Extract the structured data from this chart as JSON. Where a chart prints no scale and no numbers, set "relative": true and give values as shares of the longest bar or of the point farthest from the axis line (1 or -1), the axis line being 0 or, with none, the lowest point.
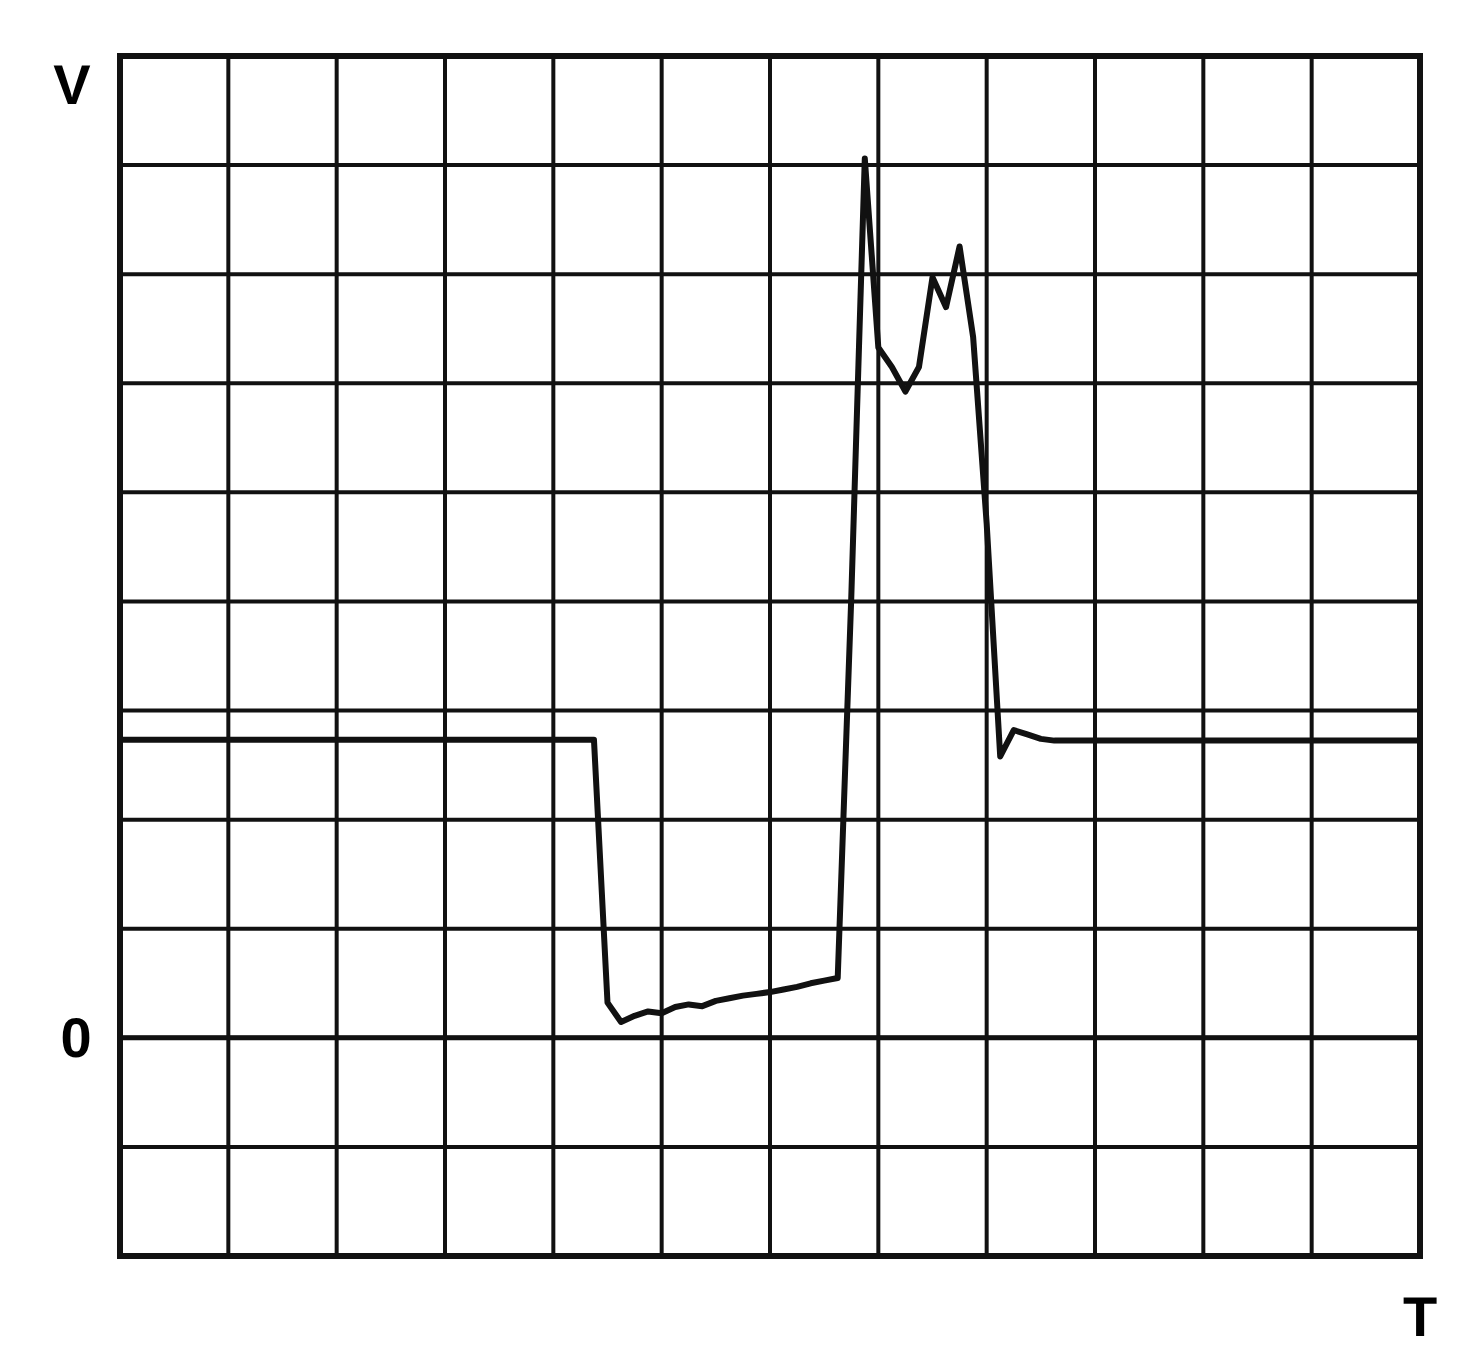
{
  "chart_data": {
    "type": "line",
    "relative": true,
    "ylabel": "V",
    "xlabel": "T",
    "grid": true,
    "ref_lines": [
      {
        "axis": "y",
        "value": 0,
        "label": "0"
      }
    ],
    "categories": [
      null,
      null,
      null,
      null,
      null,
      null,
      null,
      null,
      null,
      null,
      null,
      null,
      null,
      null,
      null,
      null,
      null,
      null,
      null,
      null,
      null,
      null,
      null,
      null,
      null,
      null,
      null,
      null,
      null,
      null,
      null,
      null,
      null,
      null,
      null,
      null,
      null,
      null,
      null,
      null,
      null,
      null,
      null,
      null,
      null,
      null,
      null,
      null,
      null,
      null,
      null,
      null,
      null,
      null,
      null,
      null,
      null,
      null,
      null,
      null,
      null,
      null,
      null,
      null,
      null,
      null,
      null,
      null,
      null,
      null,
      null,
      null,
      null,
      null,
      null,
      null,
      null,
      null,
      null,
      null,
      null,
      null,
      null,
      null,
      null,
      null,
      null,
      null,
      null,
      null,
      null,
      null,
      null,
      null,
      null,
      null,
      null
    ],
    "series": [
      {
        "color": "#111111",
        "values": [
          0.339,
          0.339,
          0.339,
          0.339,
          0.339,
          0.339,
          0.339,
          0.339,
          0.339,
          0.339,
          0.339,
          0.339,
          0.339,
          0.339,
          0.339,
          0.339,
          0.339,
          0.339,
          0.339,
          0.339,
          0.339,
          0.339,
          0.339,
          0.339,
          0.339,
          0.339,
          0.339,
          0.339,
          0.339,
          0.339,
          0.339,
          0.339,
          0.339,
          0.339,
          0.339,
          0.339,
          0.04,
          0.018,
          0.025,
          0.03,
          0.028,
          0.035,
          0.038,
          0.036,
          0.042,
          0.045,
          0.048,
          0.05,
          0.052,
          0.055,
          0.058,
          0.062,
          0.065,
          0.068,
          0.5,
          1.0,
          0.785,
          0.763,
          0.735,
          0.763,
          0.865,
          0.831,
          0.9,
          0.797,
          0.585,
          0.32,
          0.35,
          0.345,
          0.34,
          0.338,
          0.338,
          0.338,
          0.338,
          0.338,
          0.338,
          0.338,
          0.338,
          0.338,
          0.338,
          0.338,
          0.338,
          0.338,
          0.338,
          0.338,
          0.338,
          0.338,
          0.338,
          0.338,
          0.338,
          0.338,
          0.338,
          0.338,
          0.338,
          0.338,
          0.338,
          0.338,
          0.338
        ]
      }
    ]
  }
}
